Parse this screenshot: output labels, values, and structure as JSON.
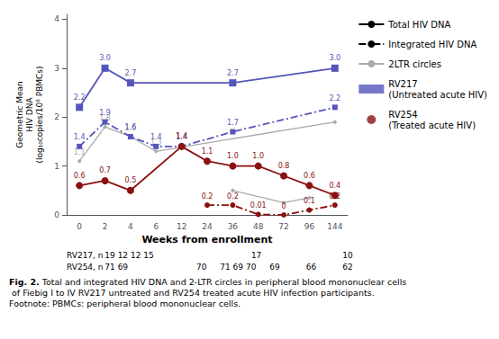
{
  "chart_data": {
    "type": "line",
    "title": "Fig. 2.",
    "subtitle": "Total and integrated HIV DNA and 2-LTR circles in peripheral blood mononuclear cells of Fiebig I to IV RV217 untreated and RV254 treated acute HIV infection participants. Footnote: PBMCs: peripheral blood mononuclear cells.",
    "x_label": "Weeks from enrollment",
    "y_label": "Geometric Mean\nHIV DNA\n(log₁₀copies/10⁶ PBMCs)",
    "categories": [
      0,
      2,
      4,
      6,
      12,
      24,
      36,
      48,
      72,
      96,
      144
    ],
    "ylim": [
      0,
      4.1
    ],
    "yticks": [
      0,
      1,
      2,
      3,
      4
    ],
    "grid": false,
    "legend": "right",
    "data_labels": true,
    "series": [
      {
        "color": "#5555bb",
        "marker": "square",
        "line_style": "solid",
        "x": [
          0,
          2,
          4,
          36,
          144
        ],
        "values": [
          2.2,
          3.0,
          2.7,
          2.7,
          3.0
        ],
        "value_labels": [
          "2.2",
          "3.0",
          "2.7",
          "2.7",
          "3.0"
        ]
      },
      {
        "color": "#5555bb",
        "marker": "square",
        "line_style": "dashdot",
        "x": [
          0,
          2,
          4,
          6,
          12,
          36,
          144
        ],
        "values": [
          1.4,
          1.9,
          1.6,
          1.4,
          1.4,
          1.7,
          2.2
        ],
        "value_labels": [
          "1.4",
          "1.9",
          "1.6",
          "1.4",
          "1.4",
          "1.7",
          "2.2"
        ]
      },
      {
        "color": "#aaaaaa",
        "marker": "diamond",
        "line_style": "solid",
        "x": [
          0,
          2,
          4,
          6,
          144
        ],
        "values": [
          1.1,
          1.8,
          1.6,
          1.3,
          1.9
        ],
        "value_labels": [
          "1.1",
          "1.8",
          "1.6",
          "1.3",
          null
        ]
      },
      {
        "color": "#8B1010",
        "marker": "circle",
        "line_style": "solid",
        "x": [
          0,
          2,
          4,
          12,
          24,
          36,
          48,
          72,
          96,
          144
        ],
        "values": [
          0.6,
          0.7,
          0.5,
          1.4,
          1.1,
          1.0,
          1.0,
          0.8,
          0.6,
          0.4
        ],
        "value_labels": [
          "0.6",
          "0.7",
          "0.5",
          "1.4",
          "1.1",
          "1.0",
          "1.0",
          "0.8",
          "0.6",
          "0.4"
        ]
      },
      {
        "color": "#8B1010",
        "marker": "circle",
        "line_style": "dashdot",
        "x": [
          24,
          36,
          48,
          72,
          96,
          144
        ],
        "values": [
          0.2,
          0.2,
          0.01,
          0.0,
          0.1,
          0.2
        ],
        "value_labels": [
          "0.2",
          "0.2",
          "0.01",
          "0",
          "0.1",
          "0.2"
        ]
      },
      {
        "color": "#aaaaaa",
        "marker": "diamond",
        "line_style": "solid",
        "x": [
          36,
          72,
          96
        ],
        "values": [
          0.5,
          0.25,
          0.35
        ],
        "value_labels": [
          null,
          null,
          null
        ]
      }
    ],
    "legend_entries": [
      {
        "name": "Total HIV DNA",
        "color": "#000000",
        "line_style": "solid"
      },
      {
        "name": "Integrated HIV DNA",
        "color": "#000000",
        "line_style": "dashdot"
      },
      {
        "name": "2LTR circles",
        "color": "#aaaaaa",
        "line_style": "solid"
      },
      {
        "name": "RV217\n(Untreated acute HIV)",
        "color": "#5555bb",
        "marker": "square"
      },
      {
        "name": "RV254\n(Treated acute HIV)",
        "color": "#8B1010",
        "marker": "circle"
      }
    ],
    "sample_sizes": [
      [
        "RV217, n 19 12 12 15",
        "17",
        "10"
      ],
      [
        "RV254, n 71 69",
        "70",
        "71 69 70",
        "69",
        "66",
        "62"
      ]
    ]
  }
}
